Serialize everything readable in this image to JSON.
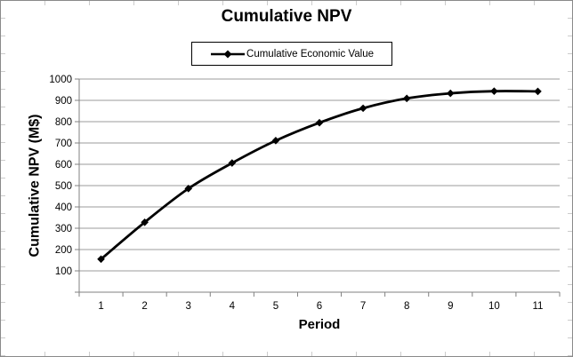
{
  "chart_data": {
    "type": "line",
    "title": "Cumulative NPV",
    "xlabel": "Period",
    "ylabel": "Cumulative NPV (M$)",
    "legend_position": "top-center",
    "legend_entries": [
      "Cumulative Economic Value"
    ],
    "x": [
      1,
      2,
      3,
      4,
      5,
      6,
      7,
      8,
      9,
      10,
      11
    ],
    "series": [
      {
        "name": "Cumulative Economic Value",
        "values": [
          155,
          328,
          486,
          606,
          711,
          795,
          863,
          909,
          933,
          943,
          942
        ]
      }
    ],
    "ylim": [
      0,
      1000
    ],
    "yticks": [
      100,
      200,
      300,
      400,
      500,
      600,
      700,
      800,
      900,
      1000
    ],
    "grid": true,
    "marker": "diamond",
    "colors": {
      "line": "#000000",
      "marker": "#000000",
      "gridline": "#9b9b9b",
      "axis": "#808080",
      "text": "#000000",
      "legend_border": "#000000",
      "chart_border": "#8a8a8a"
    }
  }
}
